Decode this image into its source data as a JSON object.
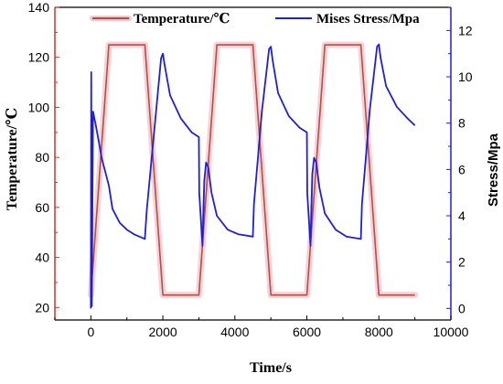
{
  "chart_data": {
    "type": "line",
    "title": "",
    "xlabel": "Time/s",
    "ylabel_left": "Temperature/℃",
    "ylabel_right": "Stress/Mpa",
    "xlim": [
      -1000,
      10000
    ],
    "ylim_left": [
      15,
      140
    ],
    "ylim_right": [
      -0.5,
      13
    ],
    "x_ticks": [
      0,
      2000,
      4000,
      6000,
      8000,
      10000
    ],
    "y_left_ticks": [
      20,
      40,
      60,
      80,
      100,
      120,
      140
    ],
    "y_right_ticks": [
      0,
      2,
      4,
      6,
      8,
      10,
      12
    ],
    "grid": false,
    "legend_placement": "top",
    "colors": {
      "temperature": "#b5503a",
      "temperature_glow": "#f5c6d2",
      "stress": "#1f1fd6",
      "left_axis": "#c0392b",
      "right_axis": "#1f1fd6"
    },
    "series": [
      {
        "name": "Temperature/℃",
        "axis": "left",
        "x": [
          0,
          500,
          1500,
          2000,
          3000,
          3500,
          4500,
          5000,
          6000,
          6500,
          7500,
          8000,
          9000
        ],
        "y": [
          25,
          125,
          125,
          25,
          25,
          125,
          125,
          25,
          25,
          125,
          125,
          25,
          25
        ]
      },
      {
        "name": "Mises Stress/Mpa",
        "axis": "right",
        "x": [
          0,
          10,
          25,
          60,
          150,
          300,
          500,
          600,
          800,
          1000,
          1200,
          1500,
          1550,
          1750,
          1950,
          2000,
          2050,
          2200,
          2500,
          2800,
          3000,
          3010,
          3100,
          3150,
          3200,
          3260,
          3350,
          3500,
          3800,
          4100,
          4500,
          4530,
          4750,
          4950,
          5000,
          5050,
          5200,
          5500,
          5800,
          6000,
          6010,
          6100,
          6150,
          6200,
          6260,
          6350,
          6500,
          6800,
          7100,
          7500,
          7530,
          7750,
          7950,
          8000,
          8050,
          8200,
          8500,
          8800,
          9000
        ],
        "y": [
          0.0,
          10.2,
          0.1,
          8.5,
          7.8,
          6.5,
          5.3,
          4.3,
          3.7,
          3.4,
          3.2,
          3.0,
          4.2,
          7.5,
          10.8,
          11.0,
          10.5,
          9.2,
          8.2,
          7.6,
          7.4,
          5.0,
          2.7,
          5.5,
          6.3,
          6.1,
          5.0,
          4.0,
          3.4,
          3.2,
          3.1,
          4.5,
          8.5,
          11.2,
          11.3,
          10.7,
          9.3,
          8.3,
          7.8,
          7.6,
          5.0,
          2.7,
          5.8,
          6.5,
          6.3,
          5.2,
          4.1,
          3.4,
          3.1,
          3.0,
          4.5,
          8.6,
          11.3,
          11.4,
          10.8,
          9.6,
          8.7,
          8.2,
          7.9
        ]
      }
    ]
  }
}
